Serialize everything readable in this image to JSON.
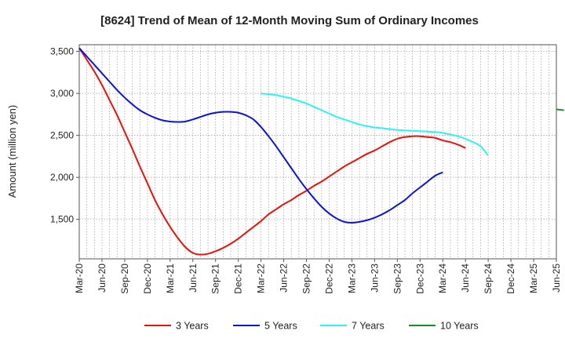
{
  "chart_data": {
    "type": "line",
    "title": "[8624]  Trend of Mean of 12-Month Moving Sum of Ordinary Incomes",
    "xlabel": "",
    "ylabel": "Amount (million yen)",
    "x_ticks": [
      "Mar-20",
      "Jun-20",
      "Sep-20",
      "Dec-20",
      "Mar-21",
      "Jun-21",
      "Sep-21",
      "Dec-21",
      "Mar-22",
      "Jun-22",
      "Sep-22",
      "Dec-22",
      "Mar-23",
      "Jun-23",
      "Sep-23",
      "Dec-23",
      "Mar-24",
      "Jun-24",
      "Sep-24",
      "Dec-24",
      "Mar-25",
      "Jun-25"
    ],
    "y_ticks": [
      1500,
      2000,
      2500,
      3000,
      3500
    ],
    "y_tick_labels": [
      "1,500",
      "2,000",
      "2,500",
      "3,000",
      "3,500"
    ],
    "ylim": [
      1030,
      3580
    ],
    "grid": true,
    "legend_position": "bottom",
    "series": [
      {
        "name": "3 Years",
        "color": "#e8120c",
        "start_index": 0,
        "values": [
          3540,
          3400,
          3260,
          3100,
          2920,
          2740,
          2540,
          2340,
          2130,
          1930,
          1730,
          1560,
          1410,
          1280,
          1170,
          1100,
          1080,
          1090,
          1120,
          1160,
          1210,
          1270,
          1340,
          1410,
          1480,
          1560,
          1620,
          1680,
          1730,
          1790,
          1840,
          1900,
          1950,
          2010,
          2070,
          2130,
          2180,
          2230,
          2280,
          2320,
          2370,
          2420,
          2460,
          2480,
          2490,
          2490,
          2480,
          2470,
          2440,
          2420,
          2390,
          2350
        ]
      },
      {
        "name": "5 Years",
        "color": "#0b14d6",
        "start_index": 0,
        "values": [
          3540,
          3440,
          3340,
          3240,
          3140,
          3040,
          2950,
          2870,
          2800,
          2750,
          2710,
          2680,
          2665,
          2660,
          2665,
          2690,
          2720,
          2750,
          2770,
          2780,
          2780,
          2770,
          2740,
          2690,
          2600,
          2490,
          2370,
          2240,
          2110,
          1980,
          1860,
          1750,
          1650,
          1570,
          1510,
          1470,
          1460,
          1470,
          1490,
          1520,
          1560,
          1610,
          1670,
          1730,
          1810,
          1880,
          1950,
          2020,
          2060
        ]
      },
      {
        "name": "7 Years",
        "color": "#2ff2f2",
        "start_index": 24,
        "values": [
          3000,
          2990,
          2980,
          2960,
          2940,
          2910,
          2880,
          2840,
          2800,
          2760,
          2720,
          2690,
          2660,
          2630,
          2610,
          2595,
          2585,
          2575,
          2565,
          2560,
          2555,
          2550,
          2545,
          2540,
          2530,
          2510,
          2490,
          2460,
          2420,
          2370,
          2260
        ]
      },
      {
        "name": "10 Years",
        "color": "#1f8a2c",
        "start_index": 63,
        "values": [
          2810,
          2800
        ]
      }
    ]
  }
}
